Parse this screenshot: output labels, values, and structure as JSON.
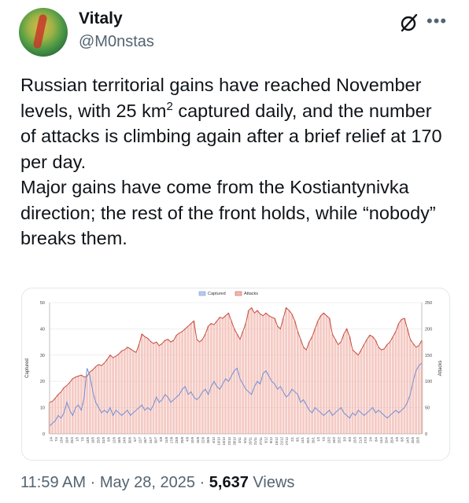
{
  "author": {
    "name": "Vitaly",
    "handle": "@M0nstas"
  },
  "icons": {
    "grok": "slashed-circle-icon",
    "more": "more-dots-icon"
  },
  "tweet": {
    "line1_pre": "Russian territorial gains have reached November levels, with 25 km",
    "line1_sup": "2",
    "line1_post": " captured daily, and the number of attacks is climbing again after a brief relief at 170 per day.",
    "line2": "Major gains have come from the Kostiantynivka direction; the rest of the front holds, while “nobody” breaks them."
  },
  "footer": {
    "time": "11:59 AM",
    "sep1": " · ",
    "date": "May 28, 2025",
    "sep2": " · ",
    "views": "5,637",
    "views_label": " Views"
  },
  "colors": {
    "captured": "#6f8fd6",
    "attacks_line": "#c44a3a",
    "attacks_bar": "#f2b8b0"
  },
  "chart_data": {
    "type": "line",
    "legend": [
      "Captured",
      "Attacks"
    ],
    "legend_position": "top-center",
    "ylabel_left": "Captured",
    "ylabel_right": "Attacks",
    "y_left_ticks": [
      "0",
      "10",
      "20",
      "30",
      "40",
      "50"
    ],
    "y_right_ticks": [
      "0",
      "50",
      "100",
      "150",
      "200",
      "250"
    ],
    "ylim_left": [
      0,
      50
    ],
    "ylim_right": [
      0,
      250
    ],
    "x_ticks": [
      "1/4",
      "7/4",
      "13/4",
      "19/4",
      "25/4",
      "1/5",
      "7/5",
      "13/5",
      "19/5",
      "25/5",
      "31/5",
      "6/6",
      "12/6",
      "18/6",
      "24/6",
      "30/6",
      "6/7",
      "12/7",
      "18/7",
      "24/7",
      "30/7",
      "5/8",
      "11/8",
      "17/8",
      "23/8",
      "29/8",
      "4/9",
      "10/9",
      "16/9",
      "22/9",
      "28/9",
      "4/10",
      "10/10",
      "16/10",
      "22/10",
      "28/10",
      "3/11",
      "9/11",
      "15/11",
      "21/11",
      "27/11",
      "3/12",
      "9/12",
      "15/12",
      "21/12",
      "27/12",
      "2/1",
      "8/1",
      "14/1",
      "20/1",
      "26/1",
      "1/2",
      "7/2",
      "13/2",
      "19/2",
      "25/2",
      "3/3",
      "9/3",
      "15/3",
      "21/3",
      "27/3",
      "2/4",
      "8/4",
      "14/4",
      "20/4",
      "26/4",
      "2/5",
      "8/5",
      "14/5",
      "20/5",
      "26/5"
    ],
    "series": [
      {
        "name": "Attacks",
        "axis": "right",
        "values": [
          60,
          62,
          68,
          75,
          80,
          88,
          92,
          98,
          105,
          108,
          110,
          112,
          108,
          110,
          118,
          122,
          128,
          132,
          130,
          135,
          142,
          150,
          145,
          148,
          152,
          158,
          160,
          165,
          162,
          158,
          155,
          170,
          190,
          185,
          182,
          176,
          172,
          175,
          168,
          172,
          178,
          180,
          175,
          178,
          188,
          192,
          195,
          200,
          205,
          210,
          215,
          180,
          175,
          180,
          190,
          205,
          210,
          208,
          215,
          222,
          220,
          225,
          230,
          215,
          200,
          190,
          180,
          195,
          210,
          235,
          240,
          230,
          235,
          228,
          225,
          230,
          225,
          222,
          220,
          205,
          200,
          220,
          240,
          235,
          228,
          215,
          195,
          180,
          165,
          160,
          175,
          185,
          200,
          215,
          225,
          230,
          225,
          220,
          190,
          180,
          170,
          175,
          190,
          200,
          185,
          160,
          155,
          150,
          160,
          170,
          180,
          188,
          185,
          178,
          165,
          160,
          162,
          170,
          175,
          185,
          195,
          210,
          218,
          220,
          200,
          180,
          172,
          165,
          168,
          178
        ]
      },
      {
        "name": "Captured",
        "axis": "left",
        "values": [
          3,
          4,
          5,
          7,
          6,
          8,
          12,
          9,
          7,
          10,
          11,
          9,
          14,
          25,
          22,
          16,
          12,
          10,
          8,
          9,
          8,
          10,
          7,
          9,
          8,
          7,
          8,
          9,
          7,
          8,
          9,
          10,
          11,
          9,
          10,
          9,
          11,
          14,
          12,
          13,
          15,
          14,
          12,
          13,
          14,
          15,
          17,
          18,
          15,
          16,
          14,
          13,
          14,
          16,
          17,
          15,
          18,
          20,
          18,
          17,
          19,
          21,
          20,
          22,
          24,
          25,
          21,
          19,
          17,
          16,
          15,
          18,
          20,
          19,
          23,
          24,
          22,
          20,
          19,
          17,
          18,
          16,
          14,
          15,
          17,
          16,
          15,
          12,
          13,
          11,
          9,
          8,
          10,
          9,
          8,
          7,
          8,
          9,
          7,
          8,
          9,
          10,
          8,
          7,
          6,
          8,
          7,
          9,
          8,
          7,
          8,
          9,
          10,
          8,
          9,
          8,
          7,
          6,
          7,
          8,
          9,
          8,
          9,
          10,
          12,
          15,
          20,
          24,
          26,
          27
        ]
      }
    ]
  }
}
